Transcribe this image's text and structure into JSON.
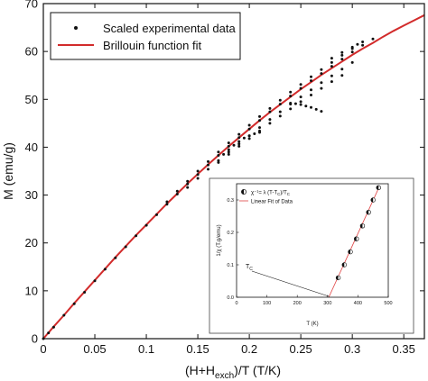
{
  "chart_data": [
    {
      "type": "scatter",
      "xlabel_main": "(H+H",
      "xlabel_sub": "exch",
      "xlabel_tail": ")/T (T/K)",
      "ylabel": "M (emu/g)",
      "xlim": [
        0,
        0.37
      ],
      "ylim": [
        0,
        70
      ],
      "x_ticks": [
        "0",
        "0.05",
        "0.1",
        "0.15",
        "0.2",
        "0.25",
        "0.3",
        "0.35"
      ],
      "x_tick_values": [
        0,
        0.05,
        0.1,
        0.15,
        0.2,
        0.25,
        0.3,
        0.35
      ],
      "y_ticks": [
        "0",
        "10",
        "20",
        "30",
        "40",
        "50",
        "60",
        "70"
      ],
      "y_tick_values": [
        0,
        10,
        20,
        30,
        40,
        50,
        60,
        70
      ],
      "legend_position": "top-left",
      "series": [
        {
          "name": "Scaled experimental data",
          "kind": "points",
          "color": "#111111",
          "branches": [
            {
              "x": [
                0.0,
                0.005,
                0.01,
                0.02,
                0.03,
                0.04,
                0.05,
                0.06,
                0.07,
                0.08,
                0.09,
                0.1,
                0.11,
                0.12,
                0.13,
                0.14,
                0.15,
                0.16,
                0.17,
                0.18,
                0.19,
                0.2,
                0.21,
                0.22,
                0.23,
                0.24,
                0.25,
                0.26,
                0.27,
                0.28,
                0.29,
                0.3,
                0.31,
                0.32
              ],
              "y": [
                0.0,
                1.2,
                2.4,
                4.9,
                7.3,
                9.7,
                12.1,
                14.5,
                16.9,
                19.2,
                21.5,
                23.7,
                25.9,
                28.1,
                30.2,
                32.3,
                34.3,
                36.3,
                38.3,
                40.2,
                42.0,
                43.8,
                45.6,
                47.4,
                49.0,
                50.7,
                52.3,
                53.9,
                55.4,
                56.9,
                58.4,
                59.9,
                61.3,
                62.6
              ]
            },
            {
              "x": [
                0.12,
                0.13,
                0.14,
                0.15,
                0.16,
                0.17,
                0.18,
                0.19,
                0.2,
                0.21,
                0.22,
                0.23,
                0.24,
                0.25,
                0.26,
                0.27,
                0.28,
                0.29,
                0.3,
                0.31
              ],
              "y": [
                28.6,
                30.8,
                32.9,
                35.0,
                37.0,
                39.0,
                40.9,
                42.7,
                44.6,
                46.4,
                48.1,
                49.8,
                51.5,
                53.1,
                54.7,
                56.2,
                57.7,
                59.2,
                60.6,
                62.0
              ]
            },
            {
              "x": [
                0.14,
                0.15,
                0.16,
                0.17,
                0.18,
                0.19,
                0.2,
                0.21,
                0.22,
                0.23,
                0.24,
                0.25,
                0.26,
                0.27,
                0.28,
                0.29,
                0.3
              ],
              "y": [
                31.6,
                33.5,
                35.4,
                37.2,
                39.0,
                40.7,
                42.4,
                44.1,
                45.8,
                47.4,
                49.0,
                50.5,
                52.0,
                53.5,
                54.9,
                56.3,
                57.7
              ]
            },
            {
              "x": [
                0.17,
                0.18,
                0.19,
                0.2,
                0.21,
                0.22,
                0.23,
                0.24,
                0.25,
                0.26,
                0.27,
                0.28,
                0.29
              ],
              "y": [
                36.8,
                38.5,
                40.2,
                41.8,
                43.4,
                45.0,
                46.5,
                48.0,
                49.5,
                50.9,
                52.3,
                53.7,
                55.0
              ]
            },
            {
              "x": [
                0.175,
                0.18,
                0.185,
                0.19,
                0.195,
                0.2,
                0.205,
                0.21
              ],
              "y": [
                38.5,
                39.5,
                40.4,
                41.2,
                41.9,
                42.4,
                42.8,
                43.1
              ]
            },
            {
              "x": [
                0.24,
                0.245,
                0.25,
                0.255,
                0.26,
                0.265,
                0.27
              ],
              "y": [
                49.2,
                49.1,
                48.9,
                48.6,
                48.3,
                47.9,
                47.5
              ]
            },
            {
              "x": [
                0.28,
                0.29,
                0.3,
                0.305
              ],
              "y": [
                58.6,
                59.8,
                60.9,
                61.5
              ]
            }
          ]
        },
        {
          "name": "Brillouin function fit",
          "kind": "line",
          "color": "#d22b2b",
          "x": [
            0.0,
            0.01,
            0.02,
            0.03,
            0.04,
            0.05,
            0.06,
            0.07,
            0.08,
            0.09,
            0.1,
            0.11,
            0.12,
            0.13,
            0.14,
            0.15,
            0.16,
            0.17,
            0.18,
            0.19,
            0.2,
            0.21,
            0.22,
            0.23,
            0.24,
            0.25,
            0.26,
            0.27,
            0.28,
            0.29,
            0.3,
            0.31,
            0.32,
            0.33,
            0.34,
            0.35,
            0.36,
            0.37
          ],
          "y": [
            0.0,
            2.5,
            4.9,
            7.4,
            9.8,
            12.2,
            14.6,
            17.0,
            19.3,
            21.6,
            23.8,
            26.0,
            28.2,
            30.3,
            32.4,
            34.4,
            36.4,
            38.3,
            40.2,
            42.0,
            43.8,
            45.6,
            47.3,
            48.9,
            50.5,
            52.1,
            53.6,
            55.1,
            56.5,
            57.9,
            59.3,
            60.6,
            61.8,
            63.1,
            64.3,
            65.4,
            66.5,
            67.6
          ]
        }
      ]
    },
    {
      "type": "scatter",
      "xlabel": "T (K)",
      "ylabel": "1/χ (T.g/emu)",
      "xlim": [
        0,
        500
      ],
      "ylim": [
        0,
        0.35
      ],
      "x_ticks": [
        "0",
        "100",
        "200",
        "300",
        "400",
        "500"
      ],
      "x_tick_values": [
        0,
        100,
        200,
        300,
        400,
        500
      ],
      "y_ticks": [
        "0.0",
        "0.1",
        "0.2",
        "0.3"
      ],
      "y_tick_values": [
        0,
        0.1,
        0.2,
        0.3
      ],
      "legend_position": "top-right",
      "annotation": "T",
      "annotation_sub": "C",
      "annotation_target": [
        304,
        0
      ],
      "series": [
        {
          "name": "χ⁻¹= λ (T-T",
          "name_sub": "C",
          "name_tail": ")/T",
          "name_tail_sub": "C",
          "kind": "points",
          "color": "#111111",
          "x": [
            335,
            355,
            375,
            395,
            415,
            435,
            450,
            468
          ],
          "y": [
            0.06,
            0.1,
            0.14,
            0.18,
            0.22,
            0.262,
            0.3,
            0.338
          ]
        },
        {
          "name": "Linear Fit of Data",
          "kind": "line",
          "color": "#e04040",
          "x": [
            304,
            470
          ],
          "y": [
            0.0,
            0.34
          ]
        }
      ]
    }
  ]
}
